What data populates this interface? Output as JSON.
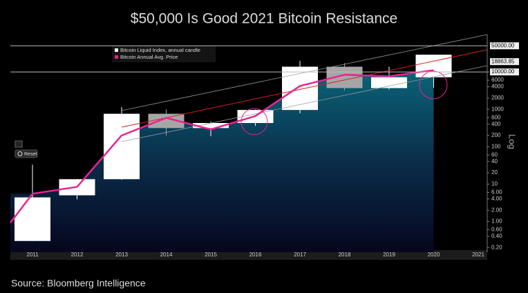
{
  "chart_data": {
    "type": "candlestick",
    "title": "$50,000 Is Good 2021 Bitcoin Resistance",
    "source": "Source: Bloomberg Intelligence",
    "y_scale_label": "Log",
    "log_scale": true,
    "categories": [
      "2011",
      "2012",
      "2013",
      "2014",
      "2015",
      "2016",
      "2017",
      "2018",
      "2019",
      "2020",
      "2021"
    ],
    "series": [
      {
        "name": "Bitcoin Liquid Index, annual candle",
        "type": "candlestick",
        "up_color": "#ffffff",
        "down_color": "#a6a6a6",
        "open": [
          0.3,
          5,
          13.5,
          760,
          315,
          430,
          960,
          13800,
          3700,
          7200,
          null
        ],
        "high": [
          33,
          13.5,
          1150,
          1000,
          470,
          980,
          19700,
          17200,
          13800,
          29000,
          null
        ],
        "low": [
          0.3,
          3.9,
          13,
          200,
          190,
          360,
          780,
          3200,
          3400,
          3800,
          null
        ],
        "close": [
          4.4,
          13.5,
          760,
          315,
          430,
          960,
          13800,
          3700,
          7200,
          28900,
          null
        ]
      },
      {
        "name": "Bitcoin Annual Avg. Price",
        "type": "line",
        "color": "#e8238f",
        "values": [
          5.5,
          8.4,
          200,
          590,
          290,
          660,
          4200,
          8400,
          7700,
          11100,
          null
        ]
      }
    ],
    "ylim": [
      0.15,
      100000
    ],
    "yticks": [
      {
        "value": 0.2,
        "label": "0.20"
      },
      {
        "value": 0.4,
        "label": "0.40"
      },
      {
        "value": 0.6,
        "label": "0.60"
      },
      {
        "value": 1,
        "label": "1.00"
      },
      {
        "value": 2,
        "label": "2.00"
      },
      {
        "value": 4,
        "label": "4.00"
      },
      {
        "value": 6,
        "label": "6.00"
      },
      10,
      20,
      40,
      60,
      100,
      200,
      400,
      600,
      1000,
      2000,
      4000,
      6000,
      10000
    ],
    "levels": [
      {
        "value": 50000,
        "label": "50000.00",
        "line": true
      },
      {
        "value": 18863.85,
        "label": "18863.85",
        "line": false
      },
      {
        "value": 10000,
        "label": "10000.00",
        "line": true
      }
    ]
  },
  "ui": {
    "reset": "Reset"
  }
}
